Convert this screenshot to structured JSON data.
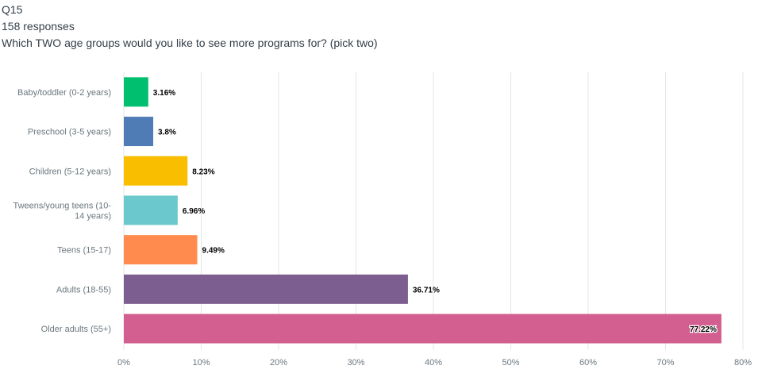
{
  "question_id": "Q15",
  "responses": "158 responses",
  "question": "Which TWO age groups would you like to see more programs for? (pick two)",
  "chart_data": {
    "type": "bar",
    "orientation": "horizontal",
    "categories": [
      [
        "Baby/toddler (0-2 years)"
      ],
      [
        "Preschool (3-5 years)"
      ],
      [
        "Children (5-12 years)"
      ],
      [
        "Tweens/young teens (10-",
        "14 years)"
      ],
      [
        "Teens (15-17)"
      ],
      [
        "Adults (18-55)"
      ],
      [
        "Older adults (55+)"
      ]
    ],
    "values": [
      3.16,
      3.8,
      8.23,
      6.96,
      9.49,
      36.71,
      77.22
    ],
    "value_labels": [
      "3.16%",
      "3.8%",
      "8.23%",
      "6.96%",
      "9.49%",
      "36.71%",
      "77.22%"
    ],
    "colors": [
      "#00bf6f",
      "#507cb6",
      "#f9be00",
      "#6bc8cd",
      "#ff8b4f",
      "#7d5e90",
      "#d25f90"
    ],
    "xlim": [
      0,
      80
    ],
    "x_ticks": [
      0,
      10,
      20,
      30,
      40,
      50,
      60,
      70,
      80
    ],
    "x_tick_labels": [
      "0%",
      "10%",
      "20%",
      "30%",
      "40%",
      "50%",
      "60%",
      "70%",
      "80%"
    ],
    "grid": true,
    "legend": "none"
  }
}
